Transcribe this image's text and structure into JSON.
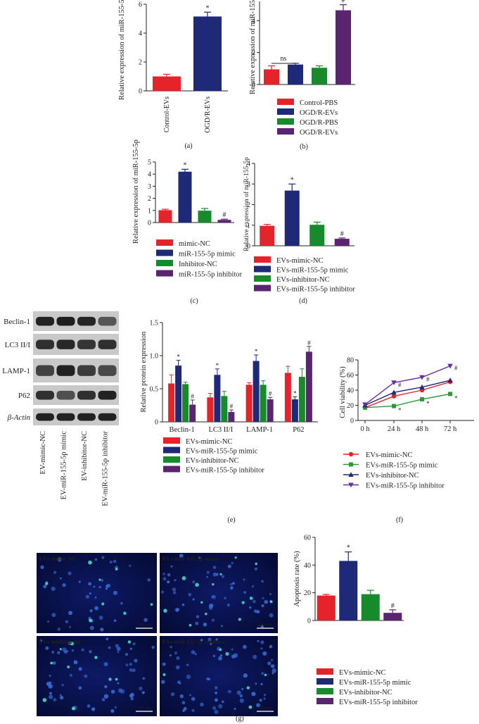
{
  "colors": {
    "red": "#e4232a",
    "blue": "#1e2a78",
    "green": "#178a2b",
    "purple": "#5a2470"
  },
  "chart_data": [
    {
      "panel": "a",
      "type": "bar",
      "categories": [
        "Control-EVs",
        "OGD/R-EVs"
      ],
      "values": [
        1.0,
        5.15
      ],
      "errors": [
        0.15,
        0.3
      ],
      "marks": [
        "",
        "*"
      ],
      "ylabel": "Relative expression of miR-155-5p",
      "ylim": [
        0,
        6
      ],
      "yticks": [
        0,
        2,
        4,
        6
      ],
      "panel_label": "(a)"
    },
    {
      "panel": "b",
      "type": "bar",
      "categories": [
        "Control-PBS",
        "OGD/R-EVs",
        "OGD/R-PBS",
        "OGD/R-EVs"
      ],
      "values": [
        0.95,
        1.25,
        1.05,
        4.65
      ],
      "errors": [
        0.22,
        0.08,
        0.12,
        0.35
      ],
      "marks": [
        "",
        "",
        "",
        "#"
      ],
      "ns": "ns",
      "ylabel": "Relative expression of miR-155-5p",
      "ylim": [
        0,
        6
      ],
      "yticks": [
        0,
        2,
        4
      ],
      "legend": [
        "Control-PBS",
        "OGD/R-EVs",
        "OGD/R-PBS",
        "OGD/R-EVs"
      ],
      "panel_label": "(b)"
    },
    {
      "panel": "c",
      "type": "bar",
      "categories": [
        "mimic-NC",
        "miR-155-5p mimic",
        "Inhibitor-NC",
        "miR-155-5p inhibitor"
      ],
      "values": [
        1.02,
        4.2,
        0.98,
        0.22
      ],
      "errors": [
        0.08,
        0.2,
        0.18,
        0.06
      ],
      "marks": [
        "",
        "*",
        "",
        "#"
      ],
      "ylabel": "Relative expression of miR-155-5p",
      "ylim": [
        0,
        5
      ],
      "yticks": [
        0,
        1,
        2,
        3,
        4,
        5
      ],
      "legend": [
        "mimic-NC",
        "miR-155-5p mimic",
        "Inhibitor-NC",
        "miR-155-5p inhibitor"
      ],
      "panel_label": "(c)"
    },
    {
      "panel": "d",
      "type": "bar",
      "categories": [
        "EVs-mimic-NC",
        "EVs-miR-155-5p mimic",
        "EVs-inhibitor-NC",
        "EVs-miR-155-5p inhibitor"
      ],
      "values": [
        0.97,
        2.68,
        1.02,
        0.34
      ],
      "errors": [
        0.07,
        0.32,
        0.13,
        0.04
      ],
      "marks": [
        "",
        "*",
        "",
        "#"
      ],
      "ylabel": "Relative expression of miR-155-5p",
      "ylim": [
        0,
        4
      ],
      "yticks": [
        0,
        1,
        2,
        3,
        4
      ],
      "legend": [
        "EVs-mimic-NC",
        "EVs-miR-155-5p mimic",
        "EVs-inhibitor-NC",
        "EVs-miR-155-5p inhibitor"
      ],
      "panel_label": "(d)"
    },
    {
      "panel": "e",
      "type": "bar",
      "categories": [
        "Beclin-1",
        "LC3 II/I",
        "LAMP-1",
        "P62"
      ],
      "series": [
        {
          "name": "EVs-mimic-NC",
          "values": [
            0.58,
            0.37,
            0.56,
            0.74
          ],
          "errors": [
            0.13,
            0.06,
            0.03,
            0.1
          ]
        },
        {
          "name": "EVs-miR-155-5p mimic",
          "values": [
            0.85,
            0.71,
            0.92,
            0.34
          ],
          "errors": [
            0.08,
            0.09,
            0.09,
            0.04
          ]
        },
        {
          "name": "EVs-inhibitor-NC",
          "values": [
            0.57,
            0.39,
            0.56,
            0.68
          ],
          "errors": [
            0.03,
            0.07,
            0.06,
            0.12
          ]
        },
        {
          "name": "EVs-miR-155-5p inhibitor",
          "values": [
            0.26,
            0.15,
            0.34,
            1.06
          ],
          "errors": [
            0.07,
            0.03,
            0.03,
            0.08
          ]
        }
      ],
      "marks": [
        [
          "",
          "*",
          "",
          "#"
        ],
        [
          "",
          "*",
          "",
          "#"
        ],
        [
          "",
          "*",
          "",
          "#"
        ],
        [
          "",
          "*",
          "",
          "#"
        ]
      ],
      "ylabel": "Relative protein expression",
      "ylim": [
        0,
        1.5
      ],
      "yticks": [
        "0",
        "0.5",
        "1.0",
        "1.5"
      ],
      "legend": [
        "EVs-mimic-NC",
        "EVs-miR-155-5p mimic",
        "EVs-inhibitor-NC",
        "EVs-miR-155-5p inhibitor"
      ],
      "panel_label": "(e)"
    },
    {
      "panel": "f",
      "type": "line",
      "x": [
        "0 h",
        "24 h",
        "48 h",
        "72 h"
      ],
      "series": [
        {
          "name": "EVs-mimic-NC",
          "values": [
            17,
            32,
            40,
            51
          ],
          "marker": "circle",
          "marks": [
            "",
            "",
            "",
            ""
          ]
        },
        {
          "name": "EVs-miR-155-5p mimic",
          "values": [
            17,
            19,
            28,
            35
          ],
          "marker": "square",
          "marks": [
            "",
            "*",
            "*",
            "*"
          ]
        },
        {
          "name": "EVs-inhibitor-NC",
          "values": [
            20,
            37,
            44,
            53
          ],
          "marker": "triangle-up",
          "marks": [
            "",
            "",
            "",
            ""
          ]
        },
        {
          "name": "EVs-miR-155-5p inhibitor",
          "values": [
            21,
            50,
            57,
            72
          ],
          "marker": "triangle-down",
          "marks": [
            "",
            "#",
            "#",
            "#"
          ]
        }
      ],
      "ylabel": "Cell viability (%)",
      "ylim": [
        0,
        80
      ],
      "yticks": [
        0,
        20,
        40,
        60,
        80
      ],
      "legend": [
        "EVs-mimic-NC",
        "EVs-miR-155-5p mimic",
        "EVs-inhibitor-NC",
        "EVs-miR-155-5p inhibitor"
      ],
      "panel_label": "(f)"
    },
    {
      "panel": "g",
      "type": "bar",
      "categories": [
        "EVs-mimic-NC",
        "EVs-miR-155-5p mimic",
        "EVs-inhibitor-NC",
        "EVs-miR-155-5p inhibitor"
      ],
      "values": [
        18,
        43,
        19,
        5.5
      ],
      "errors": [
        0.8,
        6.5,
        2.8,
        2.2
      ],
      "marks": [
        "",
        "*",
        "",
        "#"
      ],
      "ylabel": "Apoptosis rate (%)",
      "ylim": [
        0,
        60
      ],
      "yticks": [
        0,
        20,
        40,
        60
      ],
      "legend": [
        "EVs-mimic-NC",
        "EVs-miR-155-5p mimic",
        "EVs-inhibitor-NC",
        "EVs-miR-155-5p inhibitor"
      ],
      "panel_label": "(g)"
    }
  ],
  "western_blot": {
    "proteins": [
      "Beclin-1",
      "LC3 II/I",
      "LAMP-1",
      "P62",
      "β-Actin"
    ],
    "lanes": [
      "EV-mimic-NC",
      "EV-miR-155-5p mimic",
      "EV-inhibitor-NC",
      "EV-miR-155-5p inhibitor"
    ]
  },
  "micrographs": {
    "labels": [
      "EVs-mimic-NC",
      "EVs-miR-155-5p mimic",
      "EVs-inhibitor-NC",
      "EVs-miR-155-5p inhibitor"
    ],
    "scale_bar": "100 μm"
  }
}
